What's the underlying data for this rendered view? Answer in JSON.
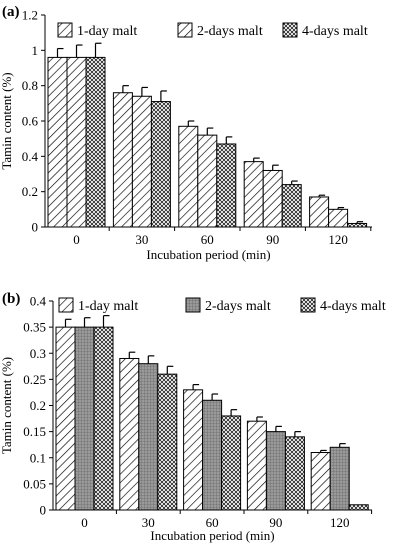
{
  "figure": {
    "panels": [
      {
        "label": "(a)"
      },
      {
        "label": "(b)"
      }
    ]
  },
  "chart_data": [
    {
      "type": "bar",
      "panel_label": "(a)",
      "xlabel": "Incubation period (min)",
      "ylabel": "Tamin content (%)",
      "categories": [
        "0",
        "30",
        "60",
        "90",
        "120"
      ],
      "ylim": [
        0,
        1.2
      ],
      "yticks": [
        0,
        0.2,
        0.4,
        0.6,
        0.8,
        1,
        1.2
      ],
      "legend_position": "top",
      "grid": false,
      "series": [
        {
          "name": "1-day malt",
          "pattern": "diagonal-hatch",
          "values": [
            0.96,
            0.76,
            0.57,
            0.37,
            0.17
          ],
          "errors": [
            0.05,
            0.04,
            0.03,
            0.02,
            0.01
          ]
        },
        {
          "name": "2-days malt",
          "pattern": "diagonal-hatch",
          "values": [
            0.96,
            0.74,
            0.52,
            0.32,
            0.1
          ],
          "errors": [
            0.07,
            0.05,
            0.04,
            0.03,
            0.01
          ]
        },
        {
          "name": "4-days malt",
          "pattern": "crosshatch",
          "values": [
            0.96,
            0.71,
            0.47,
            0.24,
            0.02
          ],
          "errors": [
            0.08,
            0.06,
            0.04,
            0.02,
            0.01
          ]
        }
      ]
    },
    {
      "type": "bar",
      "panel_label": "(b)",
      "xlabel": "Incubation period (min)",
      "ylabel": "Tamin content (%)",
      "categories": [
        "0",
        "30",
        "60",
        "90",
        "120"
      ],
      "ylim": [
        0,
        0.4
      ],
      "yticks": [
        0,
        0.05,
        0.1,
        0.15,
        0.2,
        0.25,
        0.3,
        0.35,
        0.4
      ],
      "legend_position": "top",
      "grid": false,
      "series": [
        {
          "name": "1-day malt",
          "pattern": "diagonal-hatch",
          "values": [
            0.35,
            0.29,
            0.23,
            0.17,
            0.11
          ],
          "errors": [
            0.015,
            0.012,
            0.01,
            0.008,
            0.004
          ]
        },
        {
          "name": "2-days malt",
          "pattern": "fine-grid",
          "values": [
            0.35,
            0.28,
            0.21,
            0.15,
            0.12
          ],
          "errors": [
            0.018,
            0.015,
            0.012,
            0.01,
            0.007
          ]
        },
        {
          "name": "4-days malt",
          "pattern": "crosshatch",
          "values": [
            0.35,
            0.26,
            0.18,
            0.14,
            0.01
          ],
          "errors": [
            0.022,
            0.015,
            0.012,
            0.01,
            0.0
          ]
        }
      ]
    }
  ]
}
